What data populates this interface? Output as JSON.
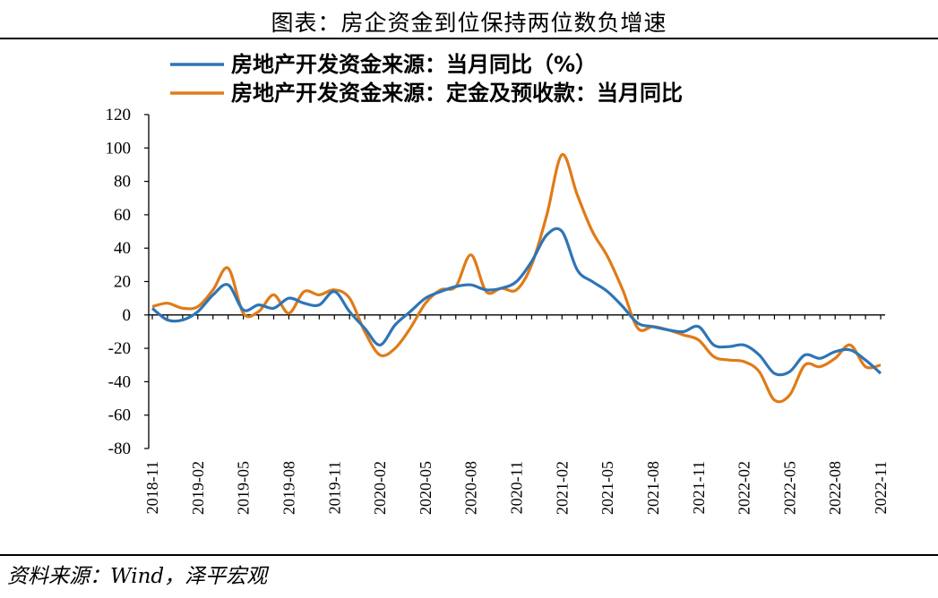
{
  "header": {
    "title": "图表：房企资金到位保持两位数负增速"
  },
  "footer": {
    "source": "资料来源：Wind，泽平宏观"
  },
  "chart_data": {
    "type": "line",
    "x": [
      "2018-11",
      "2018-12",
      "2019-01",
      "2019-02",
      "2019-03",
      "2019-04",
      "2019-05",
      "2019-06",
      "2019-07",
      "2019-08",
      "2019-09",
      "2019-10",
      "2019-11",
      "2019-12",
      "2020-01",
      "2020-02",
      "2020-03",
      "2020-04",
      "2020-05",
      "2020-06",
      "2020-07",
      "2020-08",
      "2020-09",
      "2020-10",
      "2020-11",
      "2020-12",
      "2021-01",
      "2021-02",
      "2021-03",
      "2021-04",
      "2021-05",
      "2021-06",
      "2021-07",
      "2021-08",
      "2021-09",
      "2021-10",
      "2021-11",
      "2021-12",
      "2022-01",
      "2022-02",
      "2022-03",
      "2022-04",
      "2022-05",
      "2022-06",
      "2022-07",
      "2022-08",
      "2022-09",
      "2022-10",
      "2022-11"
    ],
    "tick_labels": [
      "2018-11",
      "2019-02",
      "2019-05",
      "2019-08",
      "2019-11",
      "2020-02",
      "2020-05",
      "2020-08",
      "2020-11",
      "2021-02",
      "2021-05",
      "2021-08",
      "2021-11",
      "2022-02",
      "2022-05",
      "2022-08",
      "2022-11"
    ],
    "ylim": [
      -80,
      120
    ],
    "yticks": [
      -80,
      -60,
      -40,
      -20,
      0,
      20,
      40,
      60,
      80,
      100,
      120
    ],
    "series": [
      {
        "name": "房地产开发资金来源：当月同比（%）",
        "color": "#2E75B6",
        "values": [
          4,
          -3,
          -3,
          2,
          12,
          18,
          3,
          6,
          4,
          10,
          7,
          6,
          14,
          2,
          -8,
          -18,
          -6,
          2,
          10,
          14,
          17,
          18,
          15,
          16,
          20,
          32,
          48,
          50,
          27,
          20,
          14,
          5,
          -5,
          -7,
          -9,
          -10,
          -7,
          -18,
          -19,
          -18,
          -24,
          -35,
          -34,
          -24,
          -26,
          -22,
          -21,
          -27,
          -35
        ]
      },
      {
        "name": "房地产开发资金来源：定金及预收款：当月同比",
        "color": "#E07B18",
        "values": [
          5,
          7,
          4,
          5,
          15,
          28,
          1,
          2,
          12,
          1,
          14,
          12,
          15,
          10,
          -10,
          -24,
          -20,
          -8,
          7,
          15,
          17,
          36,
          14,
          16,
          15,
          30,
          60,
          96,
          72,
          50,
          35,
          15,
          -8,
          -7,
          -9,
          -12,
          -15,
          -25,
          -27,
          -28,
          -34,
          -51,
          -48,
          -30,
          -31,
          -26,
          -18,
          -31,
          -30
        ]
      }
    ]
  }
}
